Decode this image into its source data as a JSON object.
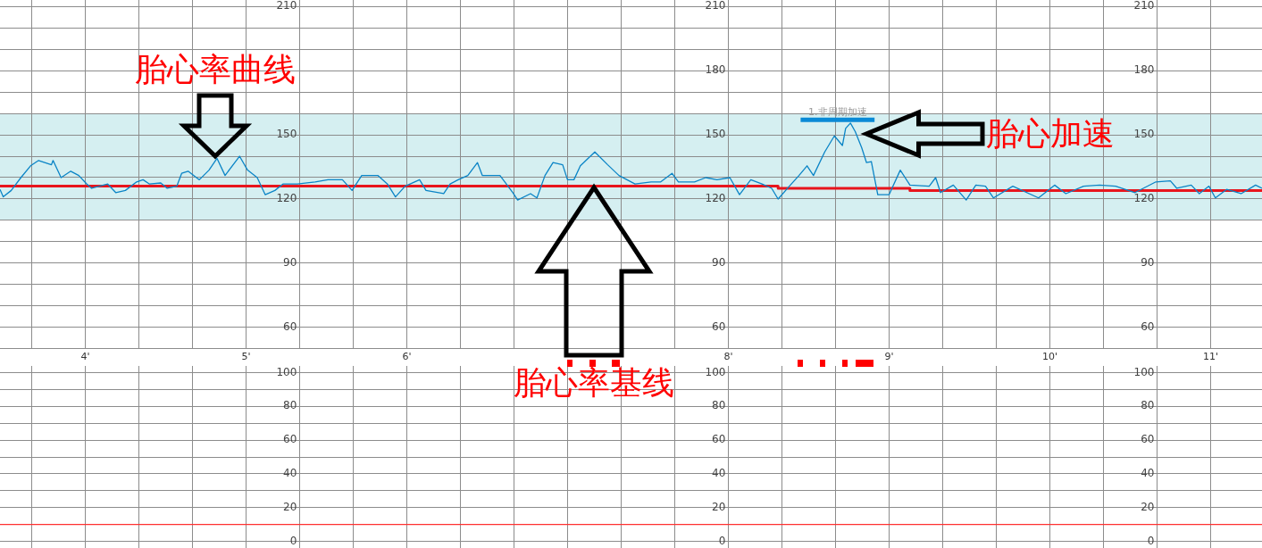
{
  "chart_data": [
    {
      "type": "line",
      "xlim": [
        3.47,
        11.32
      ],
      "xticks": [
        {
          "value": 3.667,
          "label": null
        },
        {
          "value": 4,
          "label": "4'"
        },
        {
          "value": 4.333,
          "label": null
        },
        {
          "value": 4.667,
          "label": null
        },
        {
          "value": 5,
          "label": "5'"
        },
        {
          "value": 5.333,
          "label": null
        },
        {
          "value": 5.667,
          "label": null
        },
        {
          "value": 6,
          "label": "6'"
        },
        {
          "value": 6.333,
          "label": null
        },
        {
          "value": 6.667,
          "label": null
        },
        {
          "value": 7,
          "label": null
        },
        {
          "value": 7.333,
          "label": null
        },
        {
          "value": 7.667,
          "label": null
        },
        {
          "value": 8,
          "label": "8'"
        },
        {
          "value": 8.333,
          "label": null
        },
        {
          "value": 8.667,
          "label": null
        },
        {
          "value": 9,
          "label": "9'"
        },
        {
          "value": 9.333,
          "label": null
        },
        {
          "value": 9.667,
          "label": null
        },
        {
          "value": 10,
          "label": "10'"
        },
        {
          "value": 10.333,
          "label": null
        },
        {
          "value": 10.667,
          "label": null
        },
        {
          "value": 11,
          "label": "11'"
        }
      ],
      "ylim": [
        50,
        213
      ],
      "yticks": [
        60,
        {
          "value": 70,
          "label": null
        },
        {
          "value": 80,
          "label": null
        },
        90,
        {
          "value": 100,
          "label": null
        },
        {
          "value": 110,
          "label": null
        },
        120,
        {
          "value": 130,
          "label": null
        },
        {
          "value": 140,
          "label": null
        },
        150,
        {
          "value": 160,
          "label": null
        },
        {
          "value": 170,
          "label": null
        },
        {
          "value": 180,
          "label": null
        },
        {
          "value": 190,
          "label": null
        },
        {
          "value": 200,
          "label": null
        },
        210
      ],
      "y2lim": [
        50,
        213
      ],
      "y2ticks": [
        60,
        90,
        120,
        150,
        180,
        210
      ],
      "y3lim": [
        50,
        213
      ],
      "y3ticks": [
        60,
        90,
        120,
        150,
        180,
        210
      ],
      "grid": true,
      "legend": false,
      "marker": "none",
      "bands": [
        {
          "axis": "y",
          "from": 110,
          "to": 160,
          "color": "#d5eff1"
        }
      ],
      "series": [
        {
          "color": "#0a84c6",
          "x": [
            3.47,
            3.49,
            3.54,
            3.6,
            3.66,
            3.71,
            3.79,
            3.8,
            3.85,
            3.91,
            3.96,
            4.01,
            4.04,
            4.14,
            4.19,
            4.25,
            4.32,
            4.36,
            4.4,
            4.47,
            4.51,
            4.57,
            4.6,
            4.64,
            4.71,
            4.77,
            4.82,
            4.87,
            4.96,
            5.01,
            5.07,
            5.12,
            5.18,
            5.23,
            5.32,
            5.43,
            5.51,
            5.6,
            5.66,
            5.72,
            5.82,
            5.88,
            5.93,
            5.99,
            6.08,
            6.12,
            6.23,
            6.27,
            6.32,
            6.38,
            6.44,
            6.47,
            6.58,
            6.66,
            6.69,
            6.77,
            6.81,
            6.86,
            6.91,
            6.97,
            7.0,
            7.04,
            7.08,
            7.17,
            7.25,
            7.32,
            7.42,
            7.52,
            7.58,
            7.65,
            7.69,
            7.79,
            7.86,
            7.93,
            8.01,
            8.07,
            8.14,
            8.21,
            8.27,
            8.31,
            8.38,
            8.44,
            8.49,
            8.53,
            8.6,
            8.66,
            8.71,
            8.73,
            8.76,
            8.79,
            8.83,
            8.86,
            8.89,
            8.93,
            9.0,
            9.07,
            9.13,
            9.25,
            9.29,
            9.32,
            9.4,
            9.48,
            9.54,
            9.6,
            9.65,
            9.77,
            9.93,
            10.03,
            10.1,
            10.21,
            10.31,
            10.41,
            10.53,
            10.66,
            10.75,
            10.79,
            10.88,
            10.93,
            10.99,
            11.03,
            11.1,
            11.19,
            11.28,
            11.32
          ],
          "values": [
            124.5,
            121,
            124,
            130,
            135.5,
            138,
            136,
            138,
            130,
            133,
            131,
            127,
            125,
            127,
            123,
            124,
            128,
            129,
            127,
            127.5,
            125,
            126,
            132,
            133,
            129,
            133.5,
            139,
            131,
            140,
            133.5,
            130,
            122,
            124,
            127,
            127,
            128,
            129,
            129,
            124,
            131,
            131,
            127,
            121,
            126,
            129,
            124,
            122.5,
            127,
            129,
            131,
            137,
            131,
            131,
            123,
            119.5,
            122.5,
            120.5,
            131,
            137,
            136,
            129,
            129,
            135.5,
            142,
            136,
            131,
            127,
            128,
            128,
            132,
            128,
            128,
            130,
            129,
            130,
            122,
            129,
            127,
            125,
            120,
            126,
            131,
            135.5,
            131,
            142,
            149.5,
            145,
            153,
            155.5,
            151.5,
            144,
            137,
            137.5,
            122,
            122,
            133.5,
            126.5,
            126,
            130,
            123,
            126.5,
            119.5,
            126.5,
            126,
            120.5,
            126,
            120.5,
            126.5,
            122.5,
            126,
            126.5,
            126,
            123,
            128,
            128.5,
            125,
            126.5,
            122.5,
            126,
            120.5,
            124.5,
            122.5,
            126.5,
            125
          ]
        },
        {
          "color": "#e8141c",
          "x": [
            3.47,
            8.31,
            8.31,
            9.13,
            9.13,
            11.32
          ],
          "values": [
            126,
            126,
            125,
            125,
            124,
            124
          ]
        },
        {
          "name": "1.非周期加速",
          "color": "#0a8ad6",
          "x": [
            8.45,
            8.91
          ],
          "values": [
            157,
            157
          ]
        }
      ],
      "annotations": [
        "胎心率曲线",
        "胎心加速",
        "胎心率基线"
      ]
    },
    {
      "type": "line",
      "xlim": [
        3.47,
        11.32
      ],
      "xticks": [
        {
          "value": 3.667,
          "label": null
        },
        {
          "value": 4,
          "label": null
        },
        {
          "value": 4.333,
          "label": null
        },
        {
          "value": 4.667,
          "label": null
        },
        {
          "value": 5,
          "label": null
        },
        {
          "value": 5.333,
          "label": null
        },
        {
          "value": 5.667,
          "label": null
        },
        {
          "value": 6,
          "label": null
        },
        {
          "value": 6.333,
          "label": null
        },
        {
          "value": 6.667,
          "label": null
        },
        {
          "value": 7,
          "label": null
        },
        {
          "value": 7.333,
          "label": null
        },
        {
          "value": 7.667,
          "label": null
        },
        {
          "value": 8,
          "label": null
        },
        {
          "value": 8.333,
          "label": null
        },
        {
          "value": 8.667,
          "label": null
        },
        {
          "value": 9,
          "label": null
        },
        {
          "value": 9.333,
          "label": null
        },
        {
          "value": 9.667,
          "label": null
        },
        {
          "value": 10,
          "label": null
        },
        {
          "value": 10.333,
          "label": null
        },
        {
          "value": 10.667,
          "label": null
        },
        {
          "value": 11,
          "label": null
        }
      ],
      "ylim": [
        -4,
        104
      ],
      "yticks": [
        0,
        {
          "value": 10,
          "label": null
        },
        20,
        {
          "value": 30,
          "label": null
        },
        40,
        {
          "value": 50,
          "label": null
        },
        60,
        {
          "value": 70,
          "label": null
        },
        80,
        {
          "value": 90,
          "label": null
        },
        100
      ],
      "y2lim": [
        -4,
        104
      ],
      "y2ticks": [
        0,
        20,
        40,
        60,
        80,
        100
      ],
      "y3lim": [
        -4,
        104
      ],
      "y3ticks": [
        0,
        20,
        40,
        60,
        80,
        100
      ],
      "grid": true,
      "legend": false,
      "marker": "none",
      "tick_labels": "y",
      "series": [
        {
          "color": "#ff3030",
          "x": [
            3.47,
            11.32
          ],
          "values": [
            10,
            10
          ]
        }
      ]
    }
  ]
}
